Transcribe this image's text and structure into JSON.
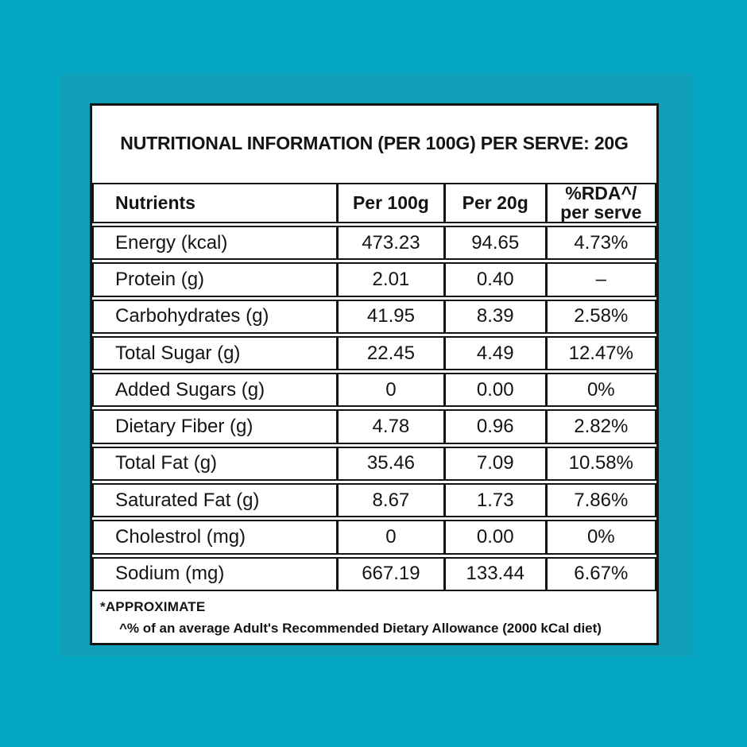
{
  "colors": {
    "background_outer": "#04A6C3",
    "background_inner": "#0F9FB6",
    "card_background": "#FFFFFF",
    "border": "#141414",
    "text": "#141414"
  },
  "title": "NUTRITIONAL INFORMATION (PER 100G) PER SERVE: 20G",
  "table": {
    "columns": [
      "Nutrients",
      "Per 100g",
      "Per 20g"
    ],
    "rda_header": {
      "line1": "%RDA^/",
      "line2": "per serve"
    },
    "rows": [
      {
        "nutrient": "Energy (kcal)",
        "per_100g": "473.23",
        "per_20g": "94.65",
        "rda": "4.73%"
      },
      {
        "nutrient": "Protein (g)",
        "per_100g": "2.01",
        "per_20g": "0.40",
        "rda": "–"
      },
      {
        "nutrient": "Carbohydrates (g)",
        "per_100g": "41.95",
        "per_20g": "8.39",
        "rda": "2.58%"
      },
      {
        "nutrient": "Total Sugar (g)",
        "per_100g": "22.45",
        "per_20g": "4.49",
        "rda": "12.47%"
      },
      {
        "nutrient": "Added Sugars (g)",
        "per_100g": "0",
        "per_20g": "0.00",
        "rda": "0%"
      },
      {
        "nutrient": "Dietary Fiber (g)",
        "per_100g": "4.78",
        "per_20g": "0.96",
        "rda": "2.82%"
      },
      {
        "nutrient": "Total Fat (g)",
        "per_100g": "35.46",
        "per_20g": "7.09",
        "rda": "10.58%"
      },
      {
        "nutrient": "Saturated Fat (g)",
        "per_100g": "8.67",
        "per_20g": "1.73",
        "rda": "7.86%"
      },
      {
        "nutrient": "Cholestrol (mg)",
        "per_100g": "0",
        "per_20g": "0.00",
        "rda": "0%"
      },
      {
        "nutrient": "Sodium (mg)",
        "per_100g": "667.19",
        "per_20g": "133.44",
        "rda": "6.67%"
      }
    ]
  },
  "footnotes": {
    "approximate": "*APPROXIMATE",
    "rda_note": "^% of an average Adult's Recommended Dietary Allowance (2000 kCal diet)"
  }
}
